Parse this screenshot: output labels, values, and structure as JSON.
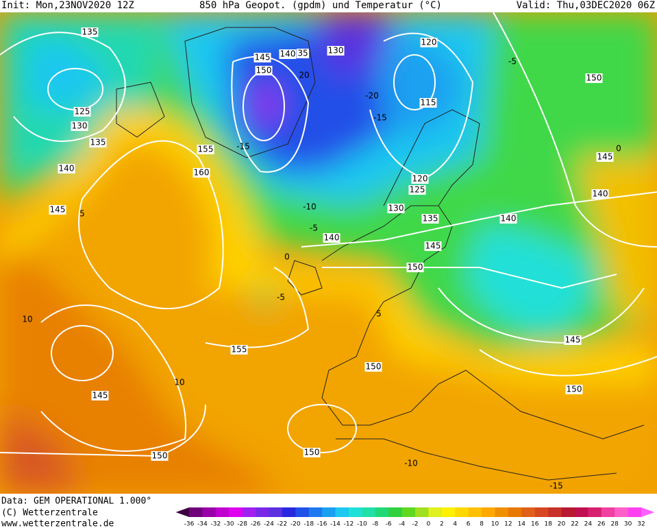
{
  "header": {
    "init": "Init: Mon,23NOV2020 12Z",
    "title": "850 hPa Geopot. (gpdm) und Temperatur (°C)",
    "valid": "Valid: Thu,03DEC2020 06Z"
  },
  "footer": {
    "data": "Data: GEM OPERATIONAL 1.000°",
    "copyright": "(C) Wetterzentrale",
    "url": "www.wetterzentrale.de"
  },
  "legend": {
    "labels": [
      -36,
      -34,
      -32,
      -30,
      -28,
      -26,
      -24,
      -22,
      -20,
      -18,
      -16,
      -14,
      -12,
      -10,
      -8,
      -6,
      -4,
      -2,
      0,
      2,
      4,
      6,
      8,
      10,
      12,
      14,
      16,
      18,
      20,
      22,
      24,
      26,
      28,
      30,
      32
    ],
    "colors": [
      "#3c0040",
      "#70007a",
      "#9a00a8",
      "#c000d0",
      "#e000f0",
      "#a020f0",
      "#7a28e8",
      "#5a30e0",
      "#2828e0",
      "#2050e8",
      "#1e78f0",
      "#1aa0f0",
      "#1ec8f0",
      "#20e0d8",
      "#20e0a8",
      "#20d878",
      "#30d040",
      "#60d820",
      "#a0e020",
      "#e0f020",
      "#fff000",
      "#ffd800",
      "#ffc000",
      "#ffa800",
      "#f09000",
      "#e87800",
      "#e06018",
      "#d84820",
      "#c83028",
      "#b81830",
      "#c01050",
      "#d82070",
      "#f040a0",
      "#ff60c8",
      "#ff40f0",
      "#ff60ff"
    ]
  },
  "map": {
    "geopotential_labels": [
      135,
      145,
      140,
      35,
      130,
      120,
      150,
      125,
      130,
      135,
      140,
      145,
      155,
      160,
      115,
      150,
      145,
      140,
      120,
      125,
      130,
      135,
      140,
      140,
      145,
      150,
      155,
      150,
      145,
      150,
      150,
      145,
      150
    ],
    "temperature_labels": [
      -5,
      -20,
      -15,
      20,
      0,
      -15,
      -10,
      -5,
      0,
      5,
      -5,
      10,
      10,
      5,
      -10,
      -15
    ]
  }
}
